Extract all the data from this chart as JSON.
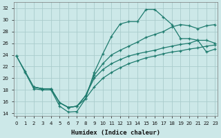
{
  "xlabel": "Humidex (Indice chaleur)",
  "bg_color": "#cce8e8",
  "grid_color": "#aacccc",
  "line_color": "#1e7b6e",
  "xlim": [
    -0.3,
    23.3
  ],
  "ylim": [
    13.5,
    33.0
  ],
  "xticks": [
    0,
    1,
    2,
    3,
    4,
    5,
    6,
    7,
    8,
    9,
    10,
    11,
    12,
    13,
    14,
    15,
    16,
    17,
    18,
    19,
    20,
    21,
    22,
    23
  ],
  "yticks": [
    14,
    16,
    18,
    20,
    22,
    24,
    26,
    28,
    30,
    32
  ],
  "line1_x": [
    0,
    1,
    2,
    3,
    4,
    5,
    6,
    7,
    8,
    9,
    10,
    11,
    12,
    13,
    14,
    15,
    16,
    17,
    18,
    19,
    20,
    21,
    22,
    23
  ],
  "line1_y": [
    23.8,
    21.0,
    18.2,
    18.0,
    18.0,
    15.2,
    14.2,
    14.3,
    16.5,
    21.0,
    24.2,
    27.2,
    29.3,
    29.7,
    29.7,
    31.8,
    31.8,
    30.5,
    29.2,
    26.8,
    26.8,
    26.5,
    24.5,
    25.0
  ],
  "line2_x": [
    0,
    1,
    2,
    3,
    4,
    5,
    6,
    7,
    8,
    9,
    10,
    11,
    12,
    13,
    14,
    15,
    16,
    17,
    18,
    19,
    20,
    21,
    22,
    23
  ],
  "line2_y": [
    23.8,
    21.2,
    18.5,
    18.2,
    18.2,
    15.8,
    15.0,
    15.2,
    16.5,
    18.5,
    20.0,
    21.0,
    21.8,
    22.5,
    23.0,
    23.5,
    23.8,
    24.2,
    24.5,
    24.7,
    25.0,
    25.2,
    25.5,
    25.7
  ],
  "line3_x": [
    2,
    3,
    4,
    5,
    6,
    7,
    8,
    9,
    10,
    11,
    12,
    13,
    14,
    15,
    16,
    17,
    18,
    19,
    20,
    21,
    22,
    23
  ],
  "line3_y": [
    18.5,
    18.2,
    18.2,
    15.8,
    15.0,
    15.2,
    17.0,
    20.0,
    21.5,
    22.5,
    23.2,
    23.8,
    24.2,
    24.5,
    24.8,
    25.2,
    25.5,
    25.8,
    26.0,
    26.5,
    26.5,
    26.0
  ],
  "line4_x": [
    2,
    3,
    4,
    5,
    6,
    7,
    8,
    9,
    10,
    11,
    12,
    13,
    14,
    15,
    16,
    17,
    18,
    19,
    20,
    21,
    22,
    23
  ],
  "line4_y": [
    18.5,
    18.2,
    18.2,
    15.8,
    15.0,
    15.2,
    17.0,
    20.5,
    22.5,
    24.0,
    24.8,
    25.5,
    26.2,
    27.0,
    27.5,
    28.0,
    28.8,
    29.2,
    29.0,
    28.5,
    29.0,
    29.2
  ]
}
